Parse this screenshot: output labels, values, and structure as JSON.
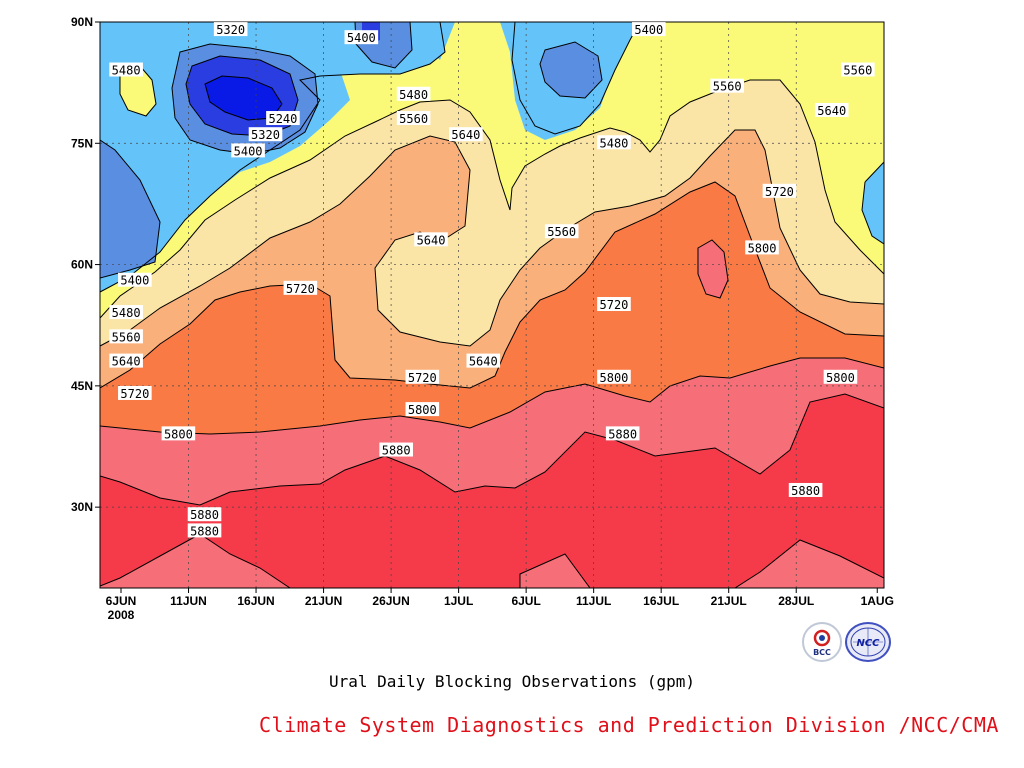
{
  "chart_data": {
    "type": "heatmap",
    "title": "Ural Daily Blocking Observations (gpm)",
    "xlabel": "",
    "ylabel": "",
    "x_ticks": [
      {
        "label": "6JUN",
        "sub": "2008",
        "day": 0
      },
      {
        "label": "11JUN",
        "sub": "",
        "day": 5
      },
      {
        "label": "16JUN",
        "sub": "",
        "day": 10
      },
      {
        "label": "21JUN",
        "sub": "",
        "day": 15
      },
      {
        "label": "26JUN",
        "sub": "",
        "day": 20
      },
      {
        "label": "1JUL",
        "sub": "",
        "day": 25
      },
      {
        "label": "6JUL",
        "sub": "",
        "day": 30
      },
      {
        "label": "11JUL",
        "sub": "",
        "day": 35
      },
      {
        "label": "16JUL",
        "sub": "",
        "day": 40
      },
      {
        "label": "21JUL",
        "sub": "",
        "day": 45
      },
      {
        "label": "28JUL",
        "sub": "",
        "day": 50
      },
      {
        "label": "1AUG",
        "sub": "",
        "day": 56
      }
    ],
    "y_ticks": [
      {
        "label": "30N",
        "lat": 30
      },
      {
        "label": "45N",
        "lat": 45
      },
      {
        "label": "60N",
        "lat": 60
      },
      {
        "label": "75N",
        "lat": 75
      },
      {
        "label": "90N",
        "lat": 90
      }
    ],
    "xlim": [
      "6JUN 2008",
      "1AUG"
    ],
    "ylim": [
      20,
      90
    ],
    "contour_levels": [
      5240,
      5320,
      5400,
      5480,
      5560,
      5640,
      5720,
      5800,
      5880
    ],
    "fill_bands": [
      {
        "range": "<5240",
        "color": "#0a1ae6"
      },
      {
        "range": "5240-5320",
        "color": "#2a3de0"
      },
      {
        "range": "5320-5400",
        "color": "#5a8ee0"
      },
      {
        "range": "5400-5480",
        "color": "#64c4fa"
      },
      {
        "range": "5480-5560",
        "color": "#fafa78"
      },
      {
        "range": "5560-5640",
        "color": "#fae4a6"
      },
      {
        "range": "5640-5720",
        "color": "#fab07a"
      },
      {
        "range": "5720-5800",
        "color": "#fa7a46"
      },
      {
        "range": "5800-5880",
        "color": "#f56e78"
      },
      {
        "range": ">5880",
        "color": "#f53a4a"
      }
    ],
    "contour_labels": [
      {
        "text": "5480",
        "day": 3,
        "lat": 84
      },
      {
        "text": "5320",
        "day": 15,
        "lat": 89
      },
      {
        "text": "5400",
        "day": 30,
        "lat": 88
      },
      {
        "text": "5240",
        "day": 21,
        "lat": 78
      },
      {
        "text": "5320",
        "day": 19,
        "lat": 76
      },
      {
        "text": "5400",
        "day": 17,
        "lat": 74
      },
      {
        "text": "5480",
        "day": 36,
        "lat": 81
      },
      {
        "text": "5560",
        "day": 36,
        "lat": 78
      },
      {
        "text": "5640",
        "day": 42,
        "lat": 76
      },
      {
        "text": "5400",
        "day": 63,
        "lat": 89
      },
      {
        "text": "5480",
        "day": 59,
        "lat": 75
      },
      {
        "text": "5560",
        "day": 72,
        "lat": 82
      },
      {
        "text": "5560",
        "day": 87,
        "lat": 84
      },
      {
        "text": "5640",
        "day": 84,
        "lat": 79
      },
      {
        "text": "5720",
        "day": 78,
        "lat": 69
      },
      {
        "text": "5800",
        "day": 76,
        "lat": 62
      },
      {
        "text": "5640",
        "day": 38,
        "lat": 63
      },
      {
        "text": "5560",
        "day": 53,
        "lat": 64
      },
      {
        "text": "5400",
        "day": 4,
        "lat": 58
      },
      {
        "text": "5480",
        "day": 3,
        "lat": 54
      },
      {
        "text": "5560",
        "day": 3,
        "lat": 51
      },
      {
        "text": "5640",
        "day": 3,
        "lat": 48
      },
      {
        "text": "5720",
        "day": 4,
        "lat": 44
      },
      {
        "text": "5720",
        "day": 23,
        "lat": 57
      },
      {
        "text": "5640",
        "day": 44,
        "lat": 48
      },
      {
        "text": "5720",
        "day": 59,
        "lat": 55
      },
      {
        "text": "5720",
        "day": 37,
        "lat": 46
      },
      {
        "text": "5800",
        "day": 59,
        "lat": 46
      },
      {
        "text": "5800",
        "day": 85,
        "lat": 46
      },
      {
        "text": "5800",
        "day": 9,
        "lat": 39
      },
      {
        "text": "5800",
        "day": 37,
        "lat": 42
      },
      {
        "text": "5880",
        "day": 34,
        "lat": 37
      },
      {
        "text": "5880",
        "day": 60,
        "lat": 39
      },
      {
        "text": "5880",
        "day": 81,
        "lat": 32
      },
      {
        "text": "5880",
        "day": 12,
        "lat": 29
      },
      {
        "text": "5880",
        "day": 12,
        "lat": 27
      }
    ]
  },
  "captions": {
    "subtitle": "Ural Daily Blocking Observations (gpm)",
    "credit": "Climate System Diagnostics and Prediction Division /NCC/CMA"
  },
  "logos": [
    {
      "name": "bcc-logo",
      "text": "BCC"
    },
    {
      "name": "ncc-logo",
      "text": "NCC"
    }
  ]
}
